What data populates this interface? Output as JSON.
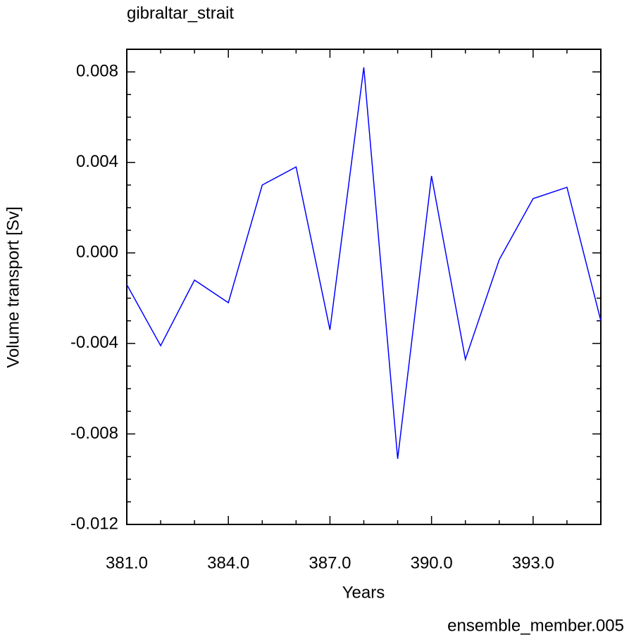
{
  "chart_data": {
    "type": "line",
    "title": "gibraltar_strait",
    "subtitle": "ensemble_member.005",
    "x_label": "Years",
    "y_label": "Volume transport [Sv]",
    "x": [
      381,
      382,
      383,
      384,
      385,
      386,
      387,
      388,
      389,
      390,
      391,
      392,
      393,
      394,
      395
    ],
    "series": [
      {
        "name": "gibraltar_strait",
        "color": "#0000ff",
        "values": [
          -0.0014,
          -0.0041,
          -0.0012,
          -0.0022,
          0.003,
          0.0038,
          -0.0034,
          0.0082,
          -0.0091,
          0.0034,
          -0.0047,
          -0.0003,
          0.0024,
          0.0029,
          -0.003
        ]
      }
    ],
    "xlim": [
      381,
      395
    ],
    "xticks": [
      {
        "value": 381,
        "label": "381.0"
      },
      {
        "value": 384,
        "label": "384.0"
      },
      {
        "value": 387,
        "label": "387.0"
      },
      {
        "value": 390,
        "label": "390.0"
      },
      {
        "value": 393,
        "label": "393.0"
      }
    ],
    "xminorticks": [
      382,
      383,
      385,
      386,
      388,
      389,
      391,
      392,
      394,
      395
    ],
    "ylim": [
      -0.012,
      0.009
    ],
    "yticks": [
      {
        "value": 0.008,
        "label": "0.008"
      },
      {
        "value": 0.004,
        "label": "0.004"
      },
      {
        "value": 0,
        "label": "0.000"
      },
      {
        "value": -0.004,
        "label": "-0.004"
      },
      {
        "value": -0.008,
        "label": "-0.008"
      },
      {
        "value": -0.012,
        "label": "-0.012"
      }
    ],
    "yminorticks": [
      0.009,
      0.007,
      0.006,
      0.005,
      0.003,
      0.002,
      0.001,
      -0.001,
      -0.002,
      -0.003,
      -0.005,
      -0.006,
      -0.007,
      -0.009,
      -0.01,
      -0.011
    ],
    "subtitle_color": "#0000ff"
  }
}
